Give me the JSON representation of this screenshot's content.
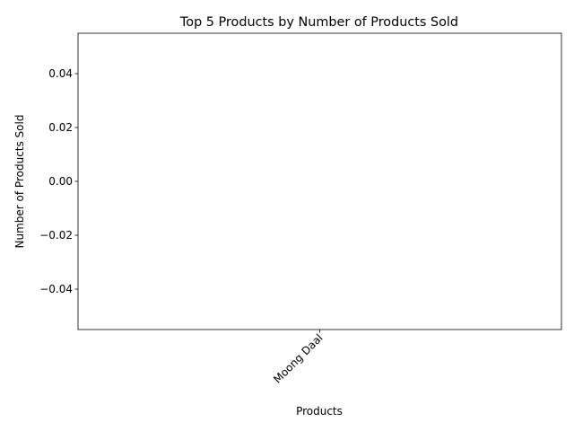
{
  "chart_data": {
    "type": "bar",
    "title": "Top 5 Products by Number of Products Sold",
    "xlabel": "Products",
    "ylabel": "Number of Products Sold",
    "categories": [
      "Moong Daal"
    ],
    "values": [
      0
    ],
    "ylim": [
      -0.055,
      0.055
    ],
    "yticks": [
      -0.04,
      -0.02,
      0.0,
      0.02,
      0.04
    ],
    "ytick_labels": [
      "−0.04",
      "−0.02",
      "0.00",
      "0.02",
      "0.04"
    ],
    "xtick_rotation_deg": 45,
    "grid": false,
    "legend": "none",
    "colors": {
      "bar": "#1f77b4",
      "axes": "#000000",
      "background": "#ffffff"
    }
  }
}
